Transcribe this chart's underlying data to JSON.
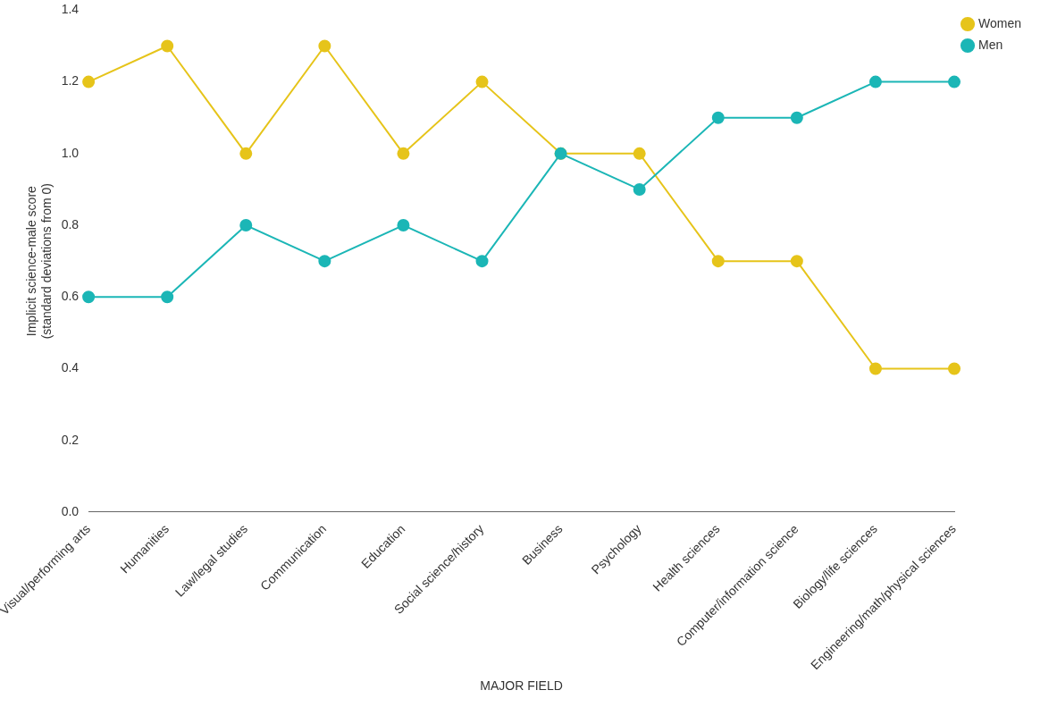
{
  "chart_data": {
    "type": "line",
    "xlabel": "MAJOR FIELD",
    "ylabel": "Implicit science-male score\n(standard deviations from 0)",
    "categories": [
      "Visual/performing arts",
      "Humanities",
      "Law/legal studies",
      "Communication",
      "Education",
      "Social science/history",
      "Business",
      "Psychology",
      "Health sciences",
      "Computer/information science",
      "Biology/life sciences",
      "Engineering/math/physical sciences"
    ],
    "series": [
      {
        "name": "Women",
        "color": "#e6c41a",
        "values": [
          1.2,
          1.3,
          1.0,
          1.3,
          1.0,
          1.2,
          1.0,
          1.0,
          0.7,
          0.7,
          0.4,
          0.4
        ]
      },
      {
        "name": "Men",
        "color": "#1bb6b6",
        "values": [
          0.6,
          0.6,
          0.8,
          0.7,
          0.8,
          0.7,
          1.0,
          0.9,
          1.1,
          1.1,
          1.2,
          1.2
        ]
      }
    ],
    "ylim": [
      0,
      1.4
    ],
    "yticks": [
      {
        "value": 0,
        "label": "0.0"
      },
      {
        "value": 0.2,
        "label": "0.2"
      },
      {
        "value": 0.4,
        "label": "0.4"
      },
      {
        "value": 0.6,
        "label": "0.6"
      },
      {
        "value": 0.8,
        "label": "0.8"
      },
      {
        "value": 1,
        "label": "1.0"
      },
      {
        "value": 1.2,
        "label": "1.2"
      },
      {
        "value": 1.4,
        "label": "1.4"
      }
    ],
    "grid": false,
    "legend": "top right",
    "marker": "circle",
    "line_style": "solid"
  }
}
